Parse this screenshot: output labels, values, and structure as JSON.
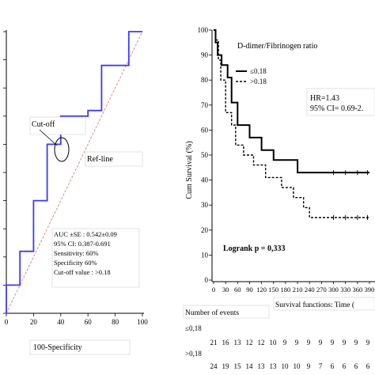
{
  "chart_data": [
    {
      "type": "line",
      "title": "",
      "xlabel": "100-Specificity",
      "ylabel": "",
      "xlim": [
        0,
        100
      ],
      "ylim": [
        0,
        100
      ],
      "x_ticks": [
        "0",
        "20",
        "40",
        "60",
        "80",
        "100"
      ],
      "series": [
        {
          "name": "",
          "color": "#3a3aff",
          "x": [
            0,
            0,
            10,
            10,
            20,
            20,
            30,
            30,
            40,
            40,
            60,
            60,
            70,
            70,
            90,
            90,
            100
          ],
          "y": [
            0,
            10,
            10,
            22,
            22,
            40,
            40,
            60,
            60,
            70,
            70,
            72,
            72,
            88,
            88,
            100,
            100
          ]
        },
        {
          "name": "Ref-line",
          "color": "#d98a8a",
          "dashed": true,
          "x": [
            0,
            100
          ],
          "y": [
            0,
            100
          ]
        }
      ],
      "annotations": {
        "cutoff": "Cut-off",
        "refline": "Ref-line",
        "stats": [
          "AUC ±SE : 0.542±0.09",
          "95% CI: 0.387-0.691",
          "Sensitivity: 60%",
          "Specificity 60%",
          "Cut-off value : >0.18"
        ]
      }
    },
    {
      "type": "line",
      "title": "D-dimer/Fibrinogen ratio",
      "xlabel": "",
      "ylabel": "Cum Survival (%)",
      "xlim": [
        0,
        390
      ],
      "ylim": [
        0,
        100
      ],
      "x_ticks": [
        "0",
        "30",
        "60",
        "90",
        "120",
        "150",
        "180",
        "210",
        "240",
        "270",
        "300",
        "330",
        "360",
        "390"
      ],
      "y_ticks": [
        "0",
        "10",
        "20",
        "30",
        "40",
        "50",
        "60",
        "70",
        "80",
        "90",
        "100"
      ],
      "series": [
        {
          "name": "≤0.18",
          "style": "solid",
          "x": [
            0,
            5,
            5,
            10,
            10,
            20,
            20,
            35,
            35,
            45,
            45,
            60,
            60,
            90,
            90,
            120,
            120,
            150,
            150,
            210,
            210,
            390
          ],
          "y": [
            100,
            100,
            95,
            95,
            90,
            90,
            86,
            86,
            81,
            81,
            71,
            71,
            62,
            62,
            57,
            57,
            52,
            52,
            48,
            48,
            43,
            43
          ]
        },
        {
          "name": ">0.18",
          "style": "dashed",
          "x": [
            0,
            5,
            5,
            12,
            12,
            18,
            18,
            30,
            30,
            45,
            45,
            55,
            55,
            75,
            75,
            100,
            100,
            130,
            130,
            170,
            170,
            200,
            200,
            225,
            225,
            240,
            240,
            390
          ],
          "y": [
            100,
            100,
            96,
            96,
            88,
            88,
            80,
            80,
            67,
            67,
            62,
            62,
            54,
            54,
            50,
            50,
            46,
            46,
            41,
            41,
            37,
            37,
            33,
            33,
            29,
            29,
            25,
            25
          ]
        }
      ],
      "annotations": {
        "hr": "HR=1.43",
        "ci": "95% CI= 0.69-2.",
        "logrank": "Logrank p = 0,333"
      },
      "risk_table": {
        "events_label": "Number of events",
        "functions_label": "Survival functions: Time (",
        "rows": [
          {
            "label": "≤0,18",
            "values": [
              "21",
              "16",
              "13",
              "12",
              "12",
              "10",
              "9",
              "9",
              "9",
              "9",
              "9",
              "9",
              "9",
              "9"
            ]
          },
          {
            "label": ">0,18",
            "values": [
              "24",
              "19",
              "15",
              "14",
              "13",
              "13",
              "10",
              "10",
              "9",
              "7",
              "6",
              "6",
              "6",
              "6"
            ]
          }
        ]
      }
    }
  ]
}
